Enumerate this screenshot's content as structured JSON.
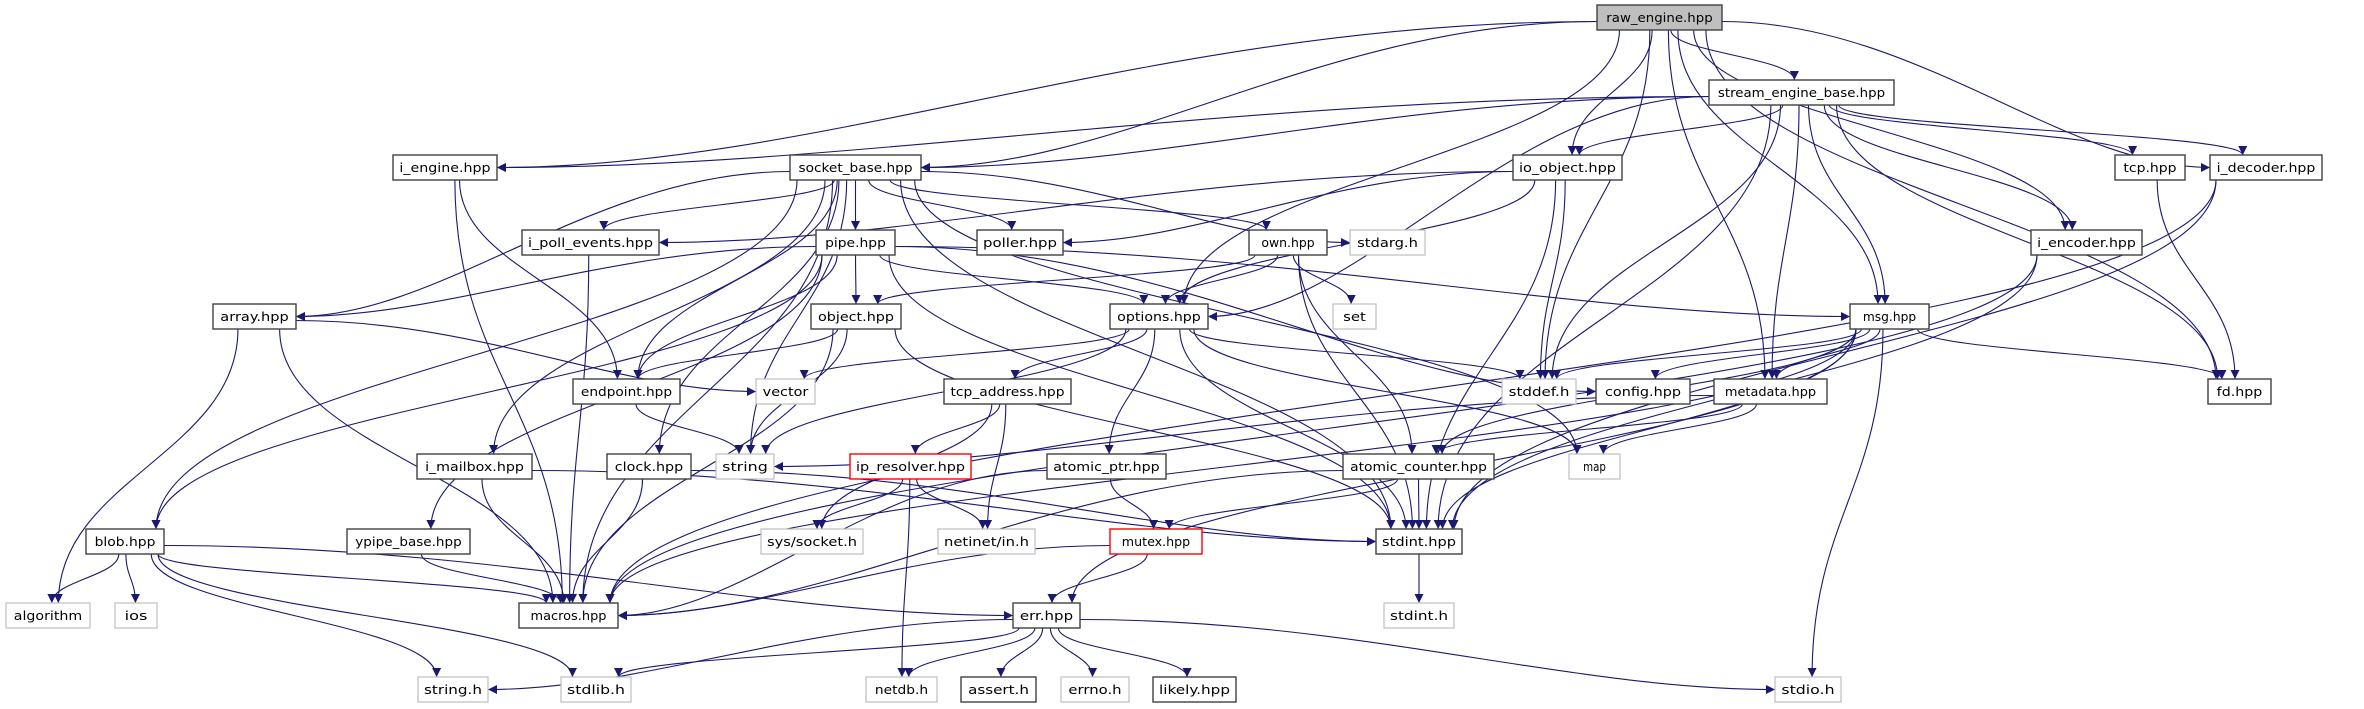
{
  "colors": {
    "edge": "#191970",
    "documented_border": "#404040",
    "undocumented_border": "#bfbfbf",
    "highlighted_fill": "#bfbfbf",
    "missing_border": "#ff0000"
  },
  "nodes": [
    {
      "id": "raw_engine",
      "label": "raw_engine.hpp",
      "kind": "root"
    },
    {
      "id": "stream_engine_base",
      "label": "stream_engine_base.hpp",
      "kind": "doc"
    },
    {
      "id": "i_engine",
      "label": "i_engine.hpp",
      "kind": "doc"
    },
    {
      "id": "socket_base",
      "label": "socket_base.hpp",
      "kind": "doc"
    },
    {
      "id": "io_object",
      "label": "io_object.hpp",
      "kind": "doc"
    },
    {
      "id": "tcp",
      "label": "tcp.hpp",
      "kind": "doc"
    },
    {
      "id": "i_decoder",
      "label": "i_decoder.hpp",
      "kind": "doc"
    },
    {
      "id": "i_poll_events",
      "label": "i_poll_events.hpp",
      "kind": "doc"
    },
    {
      "id": "pipe",
      "label": "pipe.hpp",
      "kind": "doc"
    },
    {
      "id": "poller",
      "label": "poller.hpp",
      "kind": "doc"
    },
    {
      "id": "own",
      "label": "own.hpp",
      "kind": "doc"
    },
    {
      "id": "stdarg",
      "label": "stdarg.h",
      "kind": "sys"
    },
    {
      "id": "i_encoder",
      "label": "i_encoder.hpp",
      "kind": "doc"
    },
    {
      "id": "array",
      "label": "array.hpp",
      "kind": "doc"
    },
    {
      "id": "object",
      "label": "object.hpp",
      "kind": "doc"
    },
    {
      "id": "options",
      "label": "options.hpp",
      "kind": "doc"
    },
    {
      "id": "set",
      "label": "set",
      "kind": "sys"
    },
    {
      "id": "msg",
      "label": "msg.hpp",
      "kind": "doc"
    },
    {
      "id": "endpoint",
      "label": "endpoint.hpp",
      "kind": "doc"
    },
    {
      "id": "vector",
      "label": "vector",
      "kind": "sys"
    },
    {
      "id": "tcp_address",
      "label": "tcp_address.hpp",
      "kind": "doc"
    },
    {
      "id": "stddef",
      "label": "stddef.h",
      "kind": "sys"
    },
    {
      "id": "config",
      "label": "config.hpp",
      "kind": "doc"
    },
    {
      "id": "metadata",
      "label": "metadata.hpp",
      "kind": "doc"
    },
    {
      "id": "fd",
      "label": "fd.hpp",
      "kind": "doc"
    },
    {
      "id": "i_mailbox",
      "label": "i_mailbox.hpp",
      "kind": "doc"
    },
    {
      "id": "clock",
      "label": "clock.hpp",
      "kind": "doc"
    },
    {
      "id": "string",
      "label": "string",
      "kind": "sys"
    },
    {
      "id": "ip_resolver",
      "label": "ip_resolver.hpp",
      "kind": "missing"
    },
    {
      "id": "atomic_ptr",
      "label": "atomic_ptr.hpp",
      "kind": "doc"
    },
    {
      "id": "atomic_counter",
      "label": "atomic_counter.hpp",
      "kind": "doc"
    },
    {
      "id": "map",
      "label": "map",
      "kind": "sys"
    },
    {
      "id": "blob",
      "label": "blob.hpp",
      "kind": "doc"
    },
    {
      "id": "ypipe_base",
      "label": "ypipe_base.hpp",
      "kind": "doc"
    },
    {
      "id": "sys_socket",
      "label": "sys/socket.h",
      "kind": "sys"
    },
    {
      "id": "netinet_in",
      "label": "netinet/in.h",
      "kind": "sys"
    },
    {
      "id": "mutex",
      "label": "mutex.hpp",
      "kind": "missing"
    },
    {
      "id": "stdint_hpp",
      "label": "stdint.hpp",
      "kind": "doc"
    },
    {
      "id": "algorithm",
      "label": "algorithm",
      "kind": "sys"
    },
    {
      "id": "ios",
      "label": "ios",
      "kind": "sys"
    },
    {
      "id": "macros",
      "label": "macros.hpp",
      "kind": "doc"
    },
    {
      "id": "err",
      "label": "err.hpp",
      "kind": "doc"
    },
    {
      "id": "stdint_h",
      "label": "stdint.h",
      "kind": "sys"
    },
    {
      "id": "string_h",
      "label": "string.h",
      "kind": "sys"
    },
    {
      "id": "stdlib",
      "label": "stdlib.h",
      "kind": "sys"
    },
    {
      "id": "netdb",
      "label": "netdb.h",
      "kind": "sys"
    },
    {
      "id": "assert",
      "label": "assert.h",
      "kind": "doc"
    },
    {
      "id": "errno",
      "label": "errno.h",
      "kind": "sys"
    },
    {
      "id": "likely",
      "label": "likely.hpp",
      "kind": "doc"
    },
    {
      "id": "stdio",
      "label": "stdio.h",
      "kind": "sys"
    }
  ],
  "edges": [
    [
      "raw_engine",
      "i_engine"
    ],
    [
      "raw_engine",
      "socket_base"
    ],
    [
      "raw_engine",
      "options"
    ],
    [
      "raw_engine",
      "stddef"
    ],
    [
      "raw_engine",
      "io_object"
    ],
    [
      "raw_engine",
      "stream_engine_base"
    ],
    [
      "raw_engine",
      "metadata"
    ],
    [
      "raw_engine",
      "msg"
    ],
    [
      "raw_engine",
      "i_encoder"
    ],
    [
      "raw_engine",
      "i_decoder"
    ],
    [
      "raw_engine",
      "fd"
    ],
    [
      "stream_engine_base",
      "i_engine"
    ],
    [
      "stream_engine_base",
      "socket_base"
    ],
    [
      "stream_engine_base",
      "io_object"
    ],
    [
      "stream_engine_base",
      "options"
    ],
    [
      "stream_engine_base",
      "stddef"
    ],
    [
      "stream_engine_base",
      "metadata"
    ],
    [
      "stream_engine_base",
      "msg"
    ],
    [
      "stream_engine_base",
      "tcp"
    ],
    [
      "stream_engine_base",
      "i_decoder"
    ],
    [
      "stream_engine_base",
      "i_encoder"
    ],
    [
      "stream_engine_base",
      "fd"
    ],
    [
      "stream_engine_base",
      "stdint_hpp"
    ],
    [
      "i_engine",
      "endpoint"
    ],
    [
      "i_engine",
      "macros"
    ],
    [
      "socket_base",
      "i_poll_events"
    ],
    [
      "socket_base",
      "array"
    ],
    [
      "socket_base",
      "blob"
    ],
    [
      "socket_base",
      "pipe"
    ],
    [
      "socket_base",
      "poller"
    ],
    [
      "socket_base",
      "own"
    ],
    [
      "socket_base",
      "stdarg"
    ],
    [
      "socket_base",
      "endpoint"
    ],
    [
      "socket_base",
      "string"
    ],
    [
      "socket_base",
      "map"
    ],
    [
      "socket_base",
      "i_mailbox"
    ],
    [
      "socket_base",
      "clock"
    ],
    [
      "socket_base",
      "stdint_hpp"
    ],
    [
      "socket_base",
      "macros"
    ],
    [
      "io_object",
      "i_poll_events"
    ],
    [
      "io_object",
      "poller"
    ],
    [
      "io_object",
      "stddef"
    ],
    [
      "io_object",
      "options"
    ],
    [
      "io_object",
      "stdint_hpp"
    ],
    [
      "i_poll_events",
      "macros"
    ],
    [
      "pipe",
      "array"
    ],
    [
      "pipe",
      "blob"
    ],
    [
      "pipe",
      "object"
    ],
    [
      "pipe",
      "options"
    ],
    [
      "pipe",
      "endpoint"
    ],
    [
      "pipe",
      "msg"
    ],
    [
      "pipe",
      "stdint_hpp"
    ],
    [
      "pipe",
      "ypipe_base"
    ],
    [
      "pipe",
      "config"
    ],
    [
      "own",
      "object"
    ],
    [
      "own",
      "options"
    ],
    [
      "own",
      "set"
    ],
    [
      "own",
      "atomic_counter"
    ],
    [
      "own",
      "stdint_hpp"
    ],
    [
      "object",
      "endpoint"
    ],
    [
      "object",
      "string"
    ],
    [
      "object",
      "macros"
    ],
    [
      "object",
      "stdint_hpp"
    ],
    [
      "options",
      "vector"
    ],
    [
      "options",
      "string"
    ],
    [
      "options",
      "tcp_address"
    ],
    [
      "options",
      "atomic_ptr"
    ],
    [
      "options",
      "stddef"
    ],
    [
      "options",
      "stdint_hpp"
    ],
    [
      "options",
      "map"
    ],
    [
      "array",
      "vector"
    ],
    [
      "array",
      "algorithm"
    ],
    [
      "array",
      "macros"
    ],
    [
      "endpoint",
      "string"
    ],
    [
      "msg",
      "stddef"
    ],
    [
      "msg",
      "config"
    ],
    [
      "msg",
      "metadata"
    ],
    [
      "msg",
      "atomic_counter"
    ],
    [
      "msg",
      "stdint_hpp"
    ],
    [
      "msg",
      "err"
    ],
    [
      "msg",
      "stdio"
    ],
    [
      "msg",
      "fd"
    ],
    [
      "msg",
      "macros"
    ],
    [
      "metadata",
      "map"
    ],
    [
      "metadata",
      "string"
    ],
    [
      "metadata",
      "atomic_counter"
    ],
    [
      "tcp_address",
      "ip_resolver"
    ],
    [
      "tcp_address",
      "netinet_in"
    ],
    [
      "tcp_address",
      "sys_socket"
    ],
    [
      "ip_resolver",
      "sys_socket"
    ],
    [
      "ip_resolver",
      "netinet_in"
    ],
    [
      "ip_resolver",
      "netdb"
    ],
    [
      "atomic_ptr",
      "mutex"
    ],
    [
      "atomic_ptr",
      "macros"
    ],
    [
      "atomic_counter",
      "mutex"
    ],
    [
      "atomic_counter",
      "stdint_hpp"
    ],
    [
      "atomic_counter",
      "macros"
    ],
    [
      "i_mailbox",
      "stdint_hpp"
    ],
    [
      "i_mailbox",
      "macros"
    ],
    [
      "clock",
      "stdint_hpp"
    ],
    [
      "clock",
      "macros"
    ],
    [
      "ypipe_base",
      "macros"
    ],
    [
      "blob",
      "algorithm"
    ],
    [
      "blob",
      "ios"
    ],
    [
      "blob",
      "macros"
    ],
    [
      "blob",
      "string_h"
    ],
    [
      "blob",
      "stdlib"
    ],
    [
      "blob",
      "err"
    ],
    [
      "mutex",
      "err"
    ],
    [
      "mutex",
      "macros"
    ],
    [
      "stdint_hpp",
      "stdint_h"
    ],
    [
      "err",
      "string_h"
    ],
    [
      "err",
      "stdlib"
    ],
    [
      "err",
      "netdb"
    ],
    [
      "err",
      "assert"
    ],
    [
      "err",
      "errno"
    ],
    [
      "err",
      "likely"
    ],
    [
      "err",
      "stdio"
    ],
    [
      "i_encoder",
      "stdint_hpp"
    ],
    [
      "i_encoder",
      "macros"
    ],
    [
      "i_decoder",
      "stdint_hpp"
    ],
    [
      "i_decoder",
      "macros"
    ],
    [
      "tcp",
      "fd"
    ]
  ]
}
